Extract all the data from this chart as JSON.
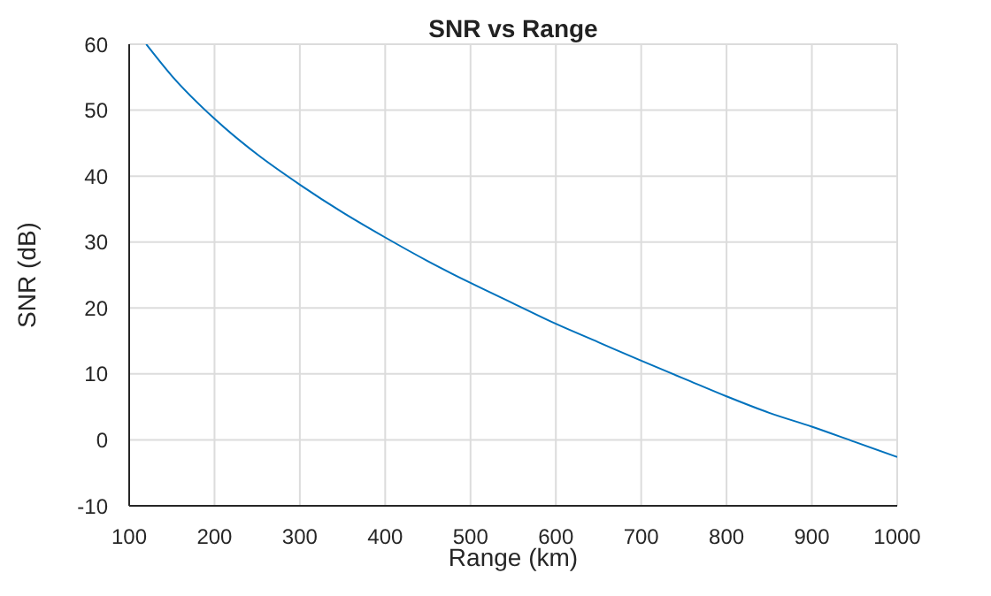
{
  "chart_data": {
    "type": "line",
    "title": "SNR vs Range",
    "xlabel": "Range (km)",
    "ylabel": "SNR (dB)",
    "x": [
      120,
      150,
      200,
      250,
      300,
      350,
      400,
      450,
      500,
      550,
      600,
      650,
      700,
      750,
      800,
      850,
      900,
      950,
      1000
    ],
    "series": [
      {
        "color": "#0072bd",
        "values": [
          60,
          55.2,
          48.7,
          43.3,
          38.7,
          34.5,
          30.7,
          27.1,
          23.8,
          20.7,
          17.6,
          14.8,
          12.0,
          9.3,
          6.6,
          4.1,
          2.0,
          -0.3,
          -2.6
        ]
      }
    ],
    "xlim": [
      100,
      1000
    ],
    "xticks": [
      100,
      200,
      300,
      400,
      500,
      600,
      700,
      800,
      900,
      1000
    ],
    "ylim": [
      -10,
      60
    ],
    "yticks": [
      -10,
      0,
      10,
      20,
      30,
      40,
      50,
      60
    ],
    "grid": true,
    "marker": "none",
    "line_style": "solid"
  }
}
